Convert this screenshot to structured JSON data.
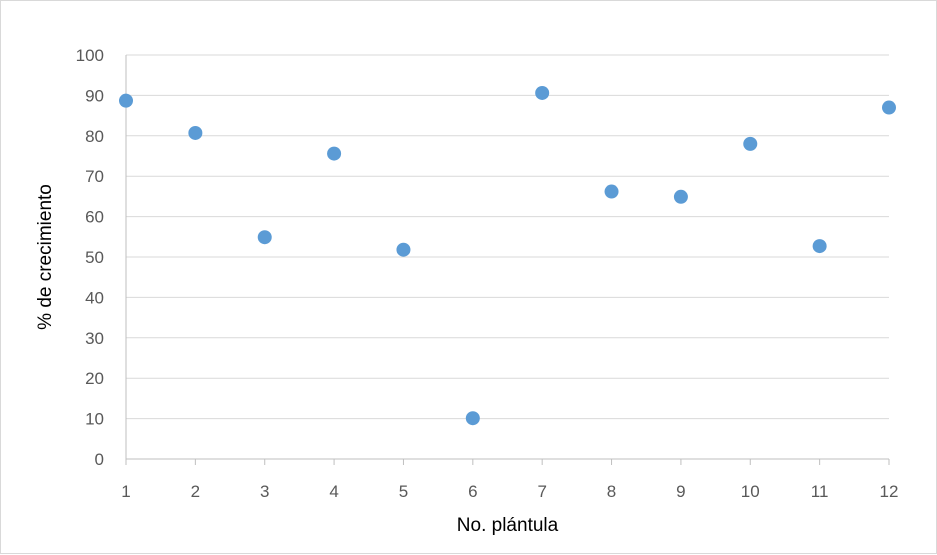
{
  "chart_data": {
    "type": "scatter",
    "xlabel": "No. plántula",
    "ylabel": "% de crecimiento",
    "xlim": [
      1,
      12
    ],
    "ylim": [
      0,
      100
    ],
    "x_ticks": [
      "1",
      "2",
      "3",
      "4",
      "5",
      "6",
      "7",
      "8",
      "9",
      "10",
      "11",
      "12"
    ],
    "y_ticks": [
      "0",
      "10",
      "20",
      "30",
      "40",
      "50",
      "60",
      "70",
      "80",
      "90",
      "100"
    ],
    "grid": true,
    "legend": false,
    "series": [
      {
        "color": "#5b9bd5",
        "points": [
          {
            "x": 1,
            "y": 88.7
          },
          {
            "x": 2,
            "y": 80.7
          },
          {
            "x": 3,
            "y": 54.9
          },
          {
            "x": 4,
            "y": 75.6
          },
          {
            "x": 5,
            "y": 51.8
          },
          {
            "x": 6,
            "y": 10.1
          },
          {
            "x": 7,
            "y": 90.6
          },
          {
            "x": 8,
            "y": 66.2
          },
          {
            "x": 9,
            "y": 64.9
          },
          {
            "x": 10,
            "y": 78.0
          },
          {
            "x": 11,
            "y": 52.7
          },
          {
            "x": 12,
            "y": 87.0
          }
        ]
      }
    ],
    "gridline_color": "#d9d9d9",
    "axis_color": "#bfbfbf"
  }
}
